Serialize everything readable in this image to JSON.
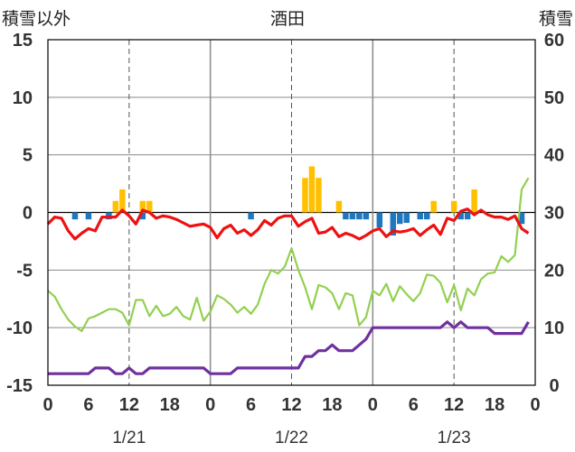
{
  "chart_data": {
    "type": "line",
    "title": "酒田",
    "ylabel_left": "積雪以外",
    "ylabel_right": "積雪",
    "ylim_left": [
      -15,
      15
    ],
    "yticks_left": [
      -15,
      -10,
      -5,
      0,
      5,
      10,
      15
    ],
    "ylim_right": [
      0,
      60
    ],
    "yticks_right": [
      0,
      10,
      20,
      30,
      40,
      50,
      60
    ],
    "xlim": [
      0,
      72
    ],
    "xticks": [
      0,
      6,
      12,
      18,
      24,
      30,
      36,
      42,
      48,
      54,
      60,
      66,
      72
    ],
    "xtick_labels": [
      "0",
      "6",
      "12",
      "18",
      "0",
      "6",
      "12",
      "18",
      "0",
      "6",
      "12",
      "18",
      "0"
    ],
    "date_labels": [
      {
        "text": "1/21",
        "hour": 12
      },
      {
        "text": "1/22",
        "hour": 36
      },
      {
        "text": "1/23",
        "hour": 60
      }
    ],
    "grid": {
      "solid_hours": [
        24,
        48
      ],
      "dashed_hours": [
        12,
        36,
        60
      ]
    },
    "colors": {
      "precipitation": "#ffc000",
      "sunshine": "#1f77c0",
      "temperature": "#ee1111",
      "humidity": "#92d050",
      "snow_depth": "#7030a0"
    },
    "series": [
      {
        "key": "precipitation",
        "kind": "bar",
        "axis": "left",
        "direction": "up",
        "x": [
          10,
          11,
          14,
          15,
          38,
          39,
          40,
          43,
          57,
          60,
          63
        ],
        "values": [
          1.0,
          2.0,
          1.0,
          1.0,
          3.0,
          4.0,
          3.0,
          1.0,
          1.0,
          1.0,
          2.0
        ]
      },
      {
        "key": "sunshine",
        "kind": "bar",
        "axis": "left",
        "direction": "down",
        "x": [
          4,
          6,
          9,
          14,
          30,
          44,
          45,
          46,
          47,
          49,
          51,
          52,
          53,
          55,
          56,
          61,
          62,
          70
        ],
        "values": [
          0.6,
          0.6,
          0.6,
          0.6,
          0.6,
          0.6,
          0.6,
          0.6,
          0.6,
          1.3,
          2.0,
          1.0,
          0.9,
          0.6,
          0.6,
          0.6,
          0.6,
          1.0
        ]
      },
      {
        "key": "temperature",
        "kind": "line",
        "axis": "left",
        "x": [
          0,
          1,
          2,
          3,
          4,
          5,
          6,
          7,
          8,
          9,
          10,
          11,
          12,
          13,
          14,
          15,
          16,
          17,
          18,
          19,
          20,
          21,
          22,
          23,
          24,
          25,
          26,
          27,
          28,
          29,
          30,
          31,
          32,
          33,
          34,
          35,
          36,
          37,
          38,
          39,
          40,
          41,
          42,
          43,
          44,
          45,
          46,
          47,
          48,
          49,
          50,
          51,
          52,
          53,
          54,
          55,
          56,
          57,
          58,
          59,
          60,
          61,
          62,
          63,
          64,
          65,
          66,
          67,
          68,
          69,
          70,
          71
        ],
        "values": [
          -1.0,
          -0.4,
          -0.5,
          -1.6,
          -2.3,
          -1.8,
          -1.4,
          -1.6,
          -0.4,
          -0.4,
          -0.4,
          0.2,
          -0.3,
          -1.0,
          0.2,
          0.0,
          -0.5,
          -0.3,
          -0.4,
          -0.6,
          -0.9,
          -1.2,
          -1.1,
          -1.0,
          -1.3,
          -2.2,
          -1.4,
          -1.1,
          -1.8,
          -1.5,
          -2.0,
          -1.5,
          -0.7,
          -1.1,
          -0.5,
          -0.3,
          -0.3,
          -1.2,
          -0.8,
          -0.5,
          -1.8,
          -1.7,
          -1.3,
          -2.1,
          -1.8,
          -2.0,
          -2.3,
          -2.0,
          -1.6,
          -1.4,
          -2.1,
          -1.6,
          -1.7,
          -1.6,
          -1.4,
          -2.0,
          -1.5,
          -1.1,
          -1.9,
          -0.5,
          -0.7,
          0.1,
          0.3,
          -0.2,
          0.2,
          -0.2,
          -0.4,
          -0.4,
          -0.6,
          -0.3,
          -1.4,
          -1.8
        ]
      },
      {
        "key": "humidity",
        "kind": "line",
        "axis": "left",
        "x": [
          0,
          1,
          2,
          3,
          4,
          5,
          6,
          7,
          8,
          9,
          10,
          11,
          12,
          13,
          14,
          15,
          16,
          17,
          18,
          19,
          20,
          21,
          22,
          23,
          24,
          25,
          26,
          27,
          28,
          29,
          30,
          31,
          32,
          33,
          34,
          35,
          36,
          37,
          38,
          39,
          40,
          41,
          42,
          43,
          44,
          45,
          46,
          47,
          48,
          49,
          50,
          51,
          52,
          53,
          54,
          55,
          56,
          57,
          58,
          59,
          60,
          61,
          62,
          63,
          64,
          65,
          66,
          67,
          68,
          69,
          70,
          71
        ],
        "values": [
          -6.8,
          -7.3,
          -8.4,
          -9.3,
          -9.9,
          -10.3,
          -9.2,
          -9.0,
          -8.7,
          -8.4,
          -8.4,
          -8.7,
          -9.8,
          -7.6,
          -7.6,
          -9.0,
          -8.1,
          -9.0,
          -8.8,
          -8.2,
          -9.0,
          -9.3,
          -7.4,
          -9.4,
          -8.6,
          -7.2,
          -7.5,
          -8.0,
          -8.7,
          -8.2,
          -8.8,
          -8.0,
          -6.2,
          -5.0,
          -5.3,
          -4.7,
          -3.1,
          -5.0,
          -6.5,
          -8.4,
          -6.3,
          -6.5,
          -7.0,
          -8.4,
          -7.0,
          -7.2,
          -9.8,
          -9.1,
          -6.8,
          -7.2,
          -6.2,
          -7.7,
          -6.4,
          -7.1,
          -7.7,
          -7.0,
          -5.4,
          -5.5,
          -6.1,
          -7.8,
          -6.3,
          -8.5,
          -6.6,
          -7.2,
          -5.8,
          -5.3,
          -5.2,
          -3.8,
          -4.3,
          -3.7,
          2.0,
          3.0
        ]
      },
      {
        "key": "snow_depth",
        "kind": "line",
        "axis": "right",
        "x": [
          0,
          1,
          2,
          3,
          4,
          5,
          6,
          7,
          8,
          9,
          10,
          11,
          12,
          13,
          14,
          15,
          16,
          17,
          18,
          19,
          20,
          21,
          22,
          23,
          24,
          25,
          26,
          27,
          28,
          29,
          30,
          31,
          32,
          33,
          34,
          35,
          36,
          37,
          38,
          39,
          40,
          41,
          42,
          43,
          44,
          45,
          46,
          47,
          48,
          49,
          50,
          51,
          52,
          53,
          54,
          55,
          56,
          57,
          58,
          59,
          60,
          61,
          62,
          63,
          64,
          65,
          66,
          67,
          68,
          69,
          70,
          71
        ],
        "values": [
          2,
          2,
          2,
          2,
          2,
          2,
          2,
          3,
          3,
          3,
          2,
          2,
          3,
          2,
          2,
          3,
          3,
          3,
          3,
          3,
          3,
          3,
          3,
          3,
          2,
          2,
          2,
          2,
          3,
          3,
          3,
          3,
          3,
          3,
          3,
          3,
          3,
          3,
          5,
          5,
          6,
          6,
          7,
          6,
          6,
          6,
          7,
          8,
          10,
          10,
          10,
          10,
          10,
          10,
          10,
          10,
          10,
          10,
          10,
          11,
          10,
          11,
          10,
          10,
          10,
          10,
          9,
          9,
          9,
          9,
          9,
          11
        ]
      }
    ]
  }
}
